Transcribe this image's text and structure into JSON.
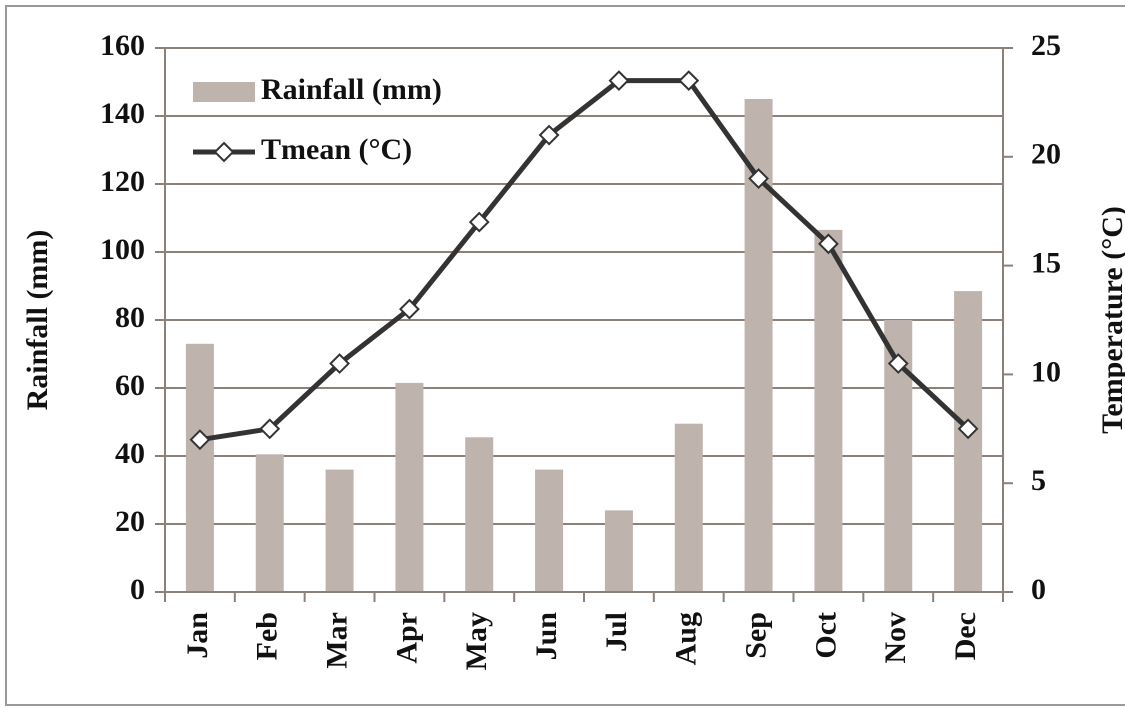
{
  "chart_data": {
    "type": "bar-line",
    "categories": [
      "Jan",
      "Feb",
      "Mar",
      "Apr",
      "May",
      "Jun",
      "Jul",
      "Aug",
      "Sep",
      "Oct",
      "Nov",
      "Dec"
    ],
    "series": [
      {
        "name": "Rainfall (mm)",
        "type": "bar",
        "color": "#bfb3ae",
        "values": [
          73,
          40.5,
          36,
          61.5,
          45.5,
          36,
          24,
          49.5,
          145,
          106.5,
          80,
          88.5
        ]
      },
      {
        "name": "Tmean (°C)",
        "type": "line",
        "axis": "y2",
        "color": "#333333",
        "values": [
          7,
          7.5,
          10.5,
          13,
          17,
          21,
          23.5,
          23.5,
          19,
          16,
          10.5,
          7.5
        ]
      }
    ],
    "ylabel": "Rainfall (mm)",
    "y2label": "Temperature (°C)",
    "ylim": [
      0,
      160
    ],
    "yticks": [
      0,
      20,
      40,
      60,
      80,
      100,
      120,
      140,
      160
    ],
    "y2lim": [
      0,
      25
    ],
    "y2ticks": [
      0,
      5,
      10,
      15,
      20,
      25
    ],
    "grid": true,
    "legend": "upper-left"
  }
}
